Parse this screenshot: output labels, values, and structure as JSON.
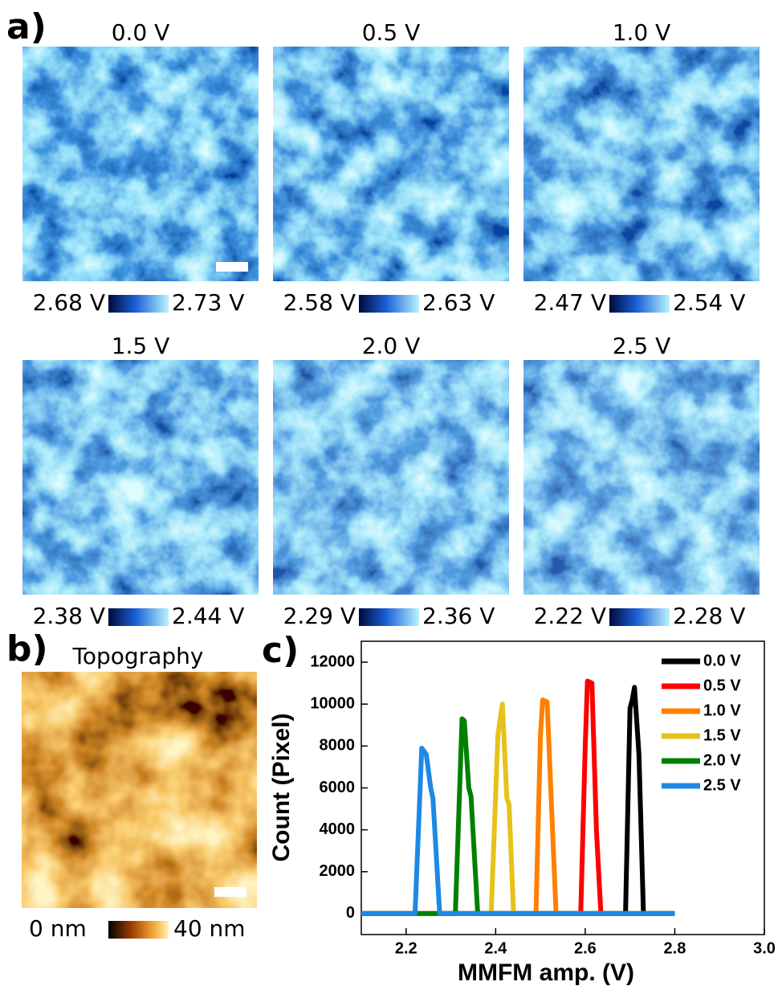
{
  "panel_a": {
    "label": "a)",
    "images": [
      {
        "title": "0.0 V",
        "min_label": "2.68 V",
        "max_label": "2.73 V"
      },
      {
        "title": "0.5 V",
        "min_label": "2.58 V",
        "max_label": "2.63 V"
      },
      {
        "title": "1.0 V",
        "min_label": "2.47 V",
        "max_label": "2.54 V"
      },
      {
        "title": "1.5 V",
        "min_label": "2.38 V",
        "max_label": "2.44 V"
      },
      {
        "title": "2.0 V",
        "min_label": "2.29 V",
        "max_label": "2.36 V"
      },
      {
        "title": "2.5 V",
        "min_label": "2.22 V",
        "max_label": "2.28 V"
      }
    ]
  },
  "panel_b": {
    "label": "b)",
    "title": "Topography",
    "min_label": "0 nm",
    "max_label": "40 nm"
  },
  "chart_data": {
    "type": "line",
    "label": "c)",
    "x_label": "MMFM amp. (V)",
    "y_label": "Count (Pixel)",
    "xlim": [
      2.1,
      3.0
    ],
    "xticks": [
      2.2,
      2.4,
      2.6,
      2.8,
      {
        "value": 3.0,
        "label": "3.0"
      }
    ],
    "ylim": [
      -1000,
      13000
    ],
    "yticks": [
      0,
      2000,
      4000,
      6000,
      8000,
      10000,
      12000
    ],
    "legend": "upper right",
    "series": [
      {
        "name": "0.0 V",
        "color": "#000000",
        "x": [
          2.1,
          2.69,
          2.7,
          2.705,
          2.71,
          2.72,
          2.73,
          2.8
        ],
        "values": [
          0,
          0,
          9800,
          10200,
          10800,
          7600,
          0,
          0
        ]
      },
      {
        "name": "0.5 V",
        "color": "#ff0000",
        "x": [
          2.1,
          2.59,
          2.6,
          2.605,
          2.615,
          2.625,
          2.635,
          2.8
        ],
        "values": [
          0,
          0,
          8000,
          11100,
          11000,
          4000,
          0,
          0
        ]
      },
      {
        "name": "1.0 V",
        "color": "#ff8000",
        "x": [
          2.1,
          2.49,
          2.5,
          2.505,
          2.515,
          2.525,
          2.535,
          2.8
        ],
        "values": [
          0,
          0,
          8500,
          10200,
          10100,
          5000,
          0,
          0
        ]
      },
      {
        "name": "1.5 V",
        "color": "#e6c21a",
        "x": [
          2.1,
          2.39,
          2.405,
          2.415,
          2.425,
          2.43,
          2.44,
          2.8
        ],
        "values": [
          0,
          0,
          8500,
          10000,
          5500,
          5200,
          0,
          0
        ]
      },
      {
        "name": "2.0 V",
        "color": "#008000",
        "x": [
          2.1,
          2.31,
          2.325,
          2.33,
          2.34,
          2.345,
          2.36,
          2.8
        ],
        "values": [
          0,
          0,
          9300,
          9200,
          6000,
          5600,
          0,
          0
        ]
      },
      {
        "name": "2.5 V",
        "color": "#1e88e5",
        "x": [
          2.1,
          2.22,
          2.235,
          2.245,
          2.255,
          2.26,
          2.275,
          2.8
        ],
        "values": [
          0,
          0,
          7900,
          7600,
          6000,
          5500,
          0,
          0
        ]
      }
    ]
  }
}
